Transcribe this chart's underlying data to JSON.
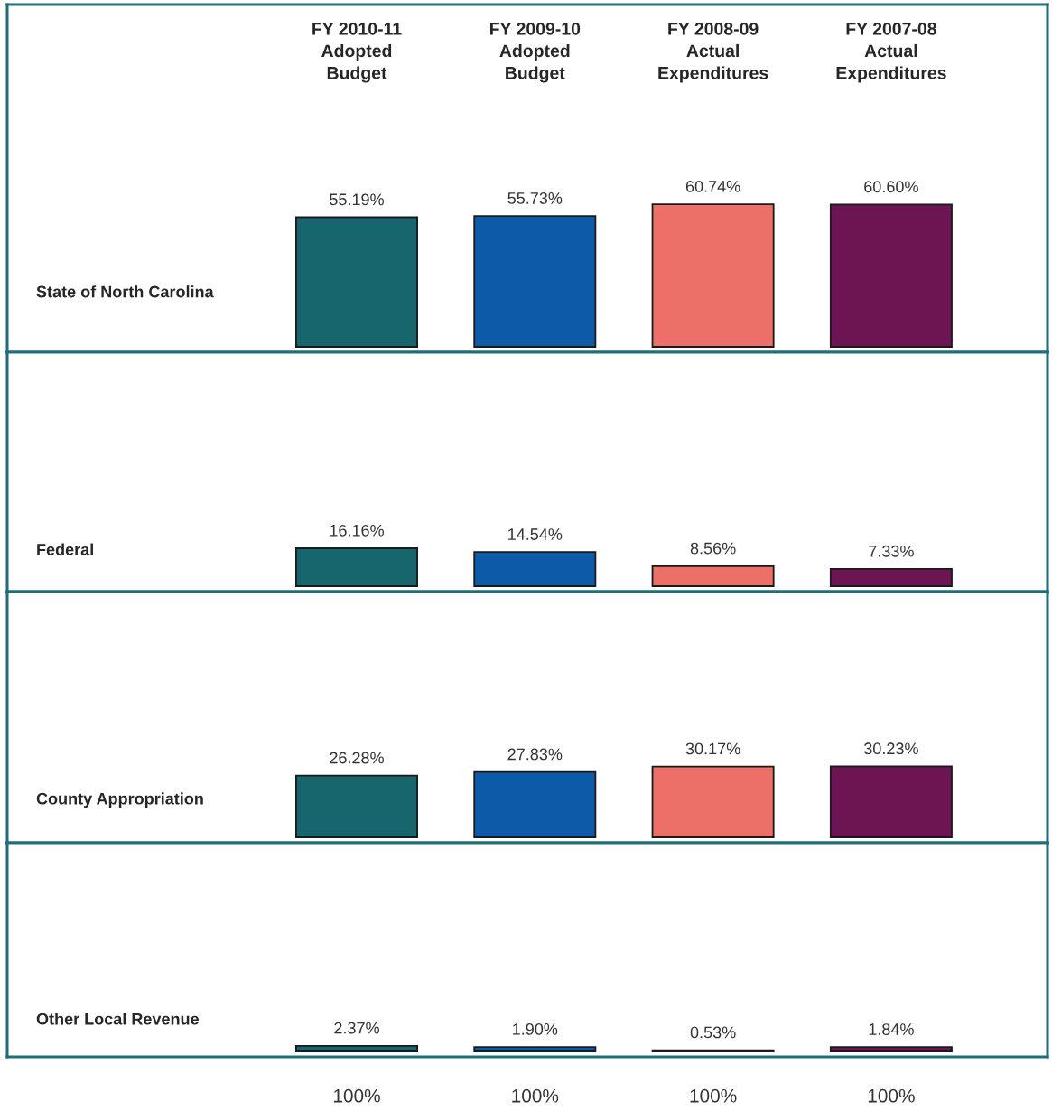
{
  "chart_data": [
    {
      "type": "bar",
      "ylabel": "State of North Carolina",
      "categories": [
        "FY 2010-11\nAdopted\nBudget",
        "FY 2009-10\nAdopted\nBudget",
        "FY 2008-09\nActual\nExpenditures",
        "FY 2007-08\nActual\nExpenditures"
      ],
      "values": [
        55.19,
        55.73,
        60.74,
        60.6
      ],
      "value_labels": [
        "55.19%",
        "55.73%",
        "60.74%",
        "60.60%"
      ],
      "colors": [
        "#17666e",
        "#0d5aa8",
        "#ec6f68",
        "#6d1452"
      ],
      "tick_labels": "x"
    },
    {
      "type": "bar",
      "ylabel": "Federal",
      "values": [
        16.16,
        14.54,
        8.56,
        7.33
      ],
      "value_labels": [
        "16.16%",
        "14.54%",
        "8.56%",
        "7.33%"
      ],
      "colors": [
        "#17666e",
        "#0d5aa8",
        "#ec6f68",
        "#6d1452"
      ],
      "tick_labels": false
    },
    {
      "type": "bar",
      "ylabel": "County Appropriation",
      "values": [
        26.28,
        27.83,
        30.17,
        30.23
      ],
      "value_labels": [
        "26.28%",
        "27.83%",
        "30.17%",
        "30.23%"
      ],
      "colors": [
        "#17666e",
        "#0d5aa8",
        "#ec6f68",
        "#6d1452"
      ],
      "tick_labels": false
    },
    {
      "type": "bar",
      "ylabel": "Other Local Revenue",
      "values": [
        2.37,
        1.9,
        0.53,
        1.84
      ],
      "value_labels": [
        "2.37%",
        "1.90%",
        "0.53%",
        "1.84%"
      ],
      "colors": [
        "#17666e",
        "#0d5aa8",
        "#ec6f68",
        "#6d1452"
      ],
      "tick_labels": false,
      "annotations": [
        "100%",
        "100%",
        "100%",
        "100%"
      ]
    }
  ]
}
